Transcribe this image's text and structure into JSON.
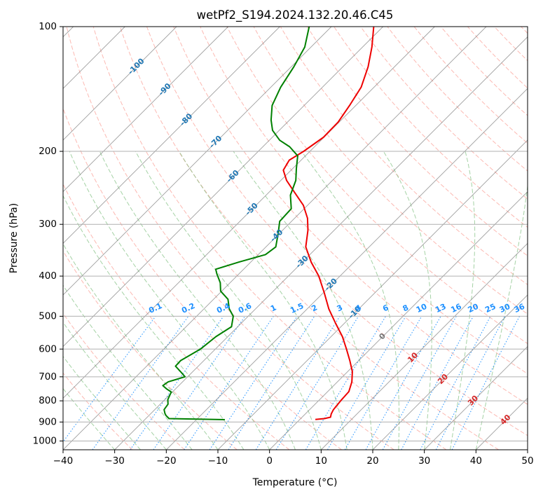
{
  "chart_data": {
    "type": "line",
    "subtype": "skew-t log-p",
    "title": "wetPf2_S194.2024.132.20.46.C45",
    "xlabel": "Temperature (°C)",
    "ylabel": "Pressure (hPa)",
    "xlim": [
      -40,
      50
    ],
    "ylim": [
      1050,
      100
    ],
    "y_scale": "log",
    "x_ticks": [
      "−40",
      "−30",
      "−20",
      "−10",
      "0",
      "10",
      "20",
      "30",
      "40",
      "50"
    ],
    "y_ticks": [
      "100",
      "200",
      "300",
      "400",
      "500",
      "600",
      "700",
      "800",
      "900",
      "1000"
    ],
    "grid": true,
    "colors": {
      "temperature": "#ee0000",
      "dewpoint": "#008000",
      "isotherm": "#808080",
      "dry_adiabat": "#fa8072",
      "moist_adiabat": "#7fbf7f",
      "mixing_ratio": "#1e90ff",
      "isotherm_label_blue": "#1f77b4",
      "isotherm_label_red": "#d62728",
      "isotherm_label_gray": "#777777"
    },
    "series": [
      {
        "key": "temperature",
        "points": [
          {
            "p": 887,
            "t": 3.0
          },
          {
            "p": 883,
            "t": 4.6
          },
          {
            "p": 876,
            "t": 5.5
          },
          {
            "p": 860,
            "t": 5.0
          },
          {
            "p": 840,
            "t": 4.6
          },
          {
            "p": 800,
            "t": 4.3
          },
          {
            "p": 760,
            "t": 4.1
          },
          {
            "p": 720,
            "t": 2.8
          },
          {
            "p": 680,
            "t": 0.9
          },
          {
            "p": 640,
            "t": -1.7
          },
          {
            "p": 600,
            "t": -4.6
          },
          {
            "p": 560,
            "t": -7.8
          },
          {
            "p": 520,
            "t": -11.7
          },
          {
            "p": 480,
            "t": -15.8
          },
          {
            "p": 440,
            "t": -19.7
          },
          {
            "p": 400,
            "t": -24.1
          },
          {
            "p": 370,
            "t": -28.3
          },
          {
            "p": 340,
            "t": -32.3
          },
          {
            "p": 310,
            "t": -35.1
          },
          {
            "p": 290,
            "t": -37.5
          },
          {
            "p": 270,
            "t": -40.8
          },
          {
            "p": 250,
            "t": -45.3
          },
          {
            "p": 235,
            "t": -48.9
          },
          {
            "p": 222,
            "t": -51.5
          },
          {
            "p": 210,
            "t": -52.3
          },
          {
            "p": 200,
            "t": -51.2
          },
          {
            "p": 185,
            "t": -50.1
          },
          {
            "p": 170,
            "t": -50.2
          },
          {
            "p": 155,
            "t": -51.2
          },
          {
            "p": 140,
            "t": -52.5
          },
          {
            "p": 125,
            "t": -55.1
          },
          {
            "p": 112,
            "t": -58.2
          },
          {
            "p": 100,
            "t": -61.8
          }
        ]
      },
      {
        "key": "dewpoint",
        "points": [
          {
            "p": 888,
            "t": -14.5
          },
          {
            "p": 883,
            "t": -25.5
          },
          {
            "p": 868,
            "t": -26.7
          },
          {
            "p": 858,
            "t": -27.3
          },
          {
            "p": 840,
            "t": -28.2
          },
          {
            "p": 815,
            "t": -28.5
          },
          {
            "p": 795,
            "t": -29.4
          },
          {
            "p": 775,
            "t": -29.9
          },
          {
            "p": 762,
            "t": -30.2
          },
          {
            "p": 748,
            "t": -31.8
          },
          {
            "p": 735,
            "t": -33.1
          },
          {
            "p": 720,
            "t": -32.8
          },
          {
            "p": 700,
            "t": -30.5
          },
          {
            "p": 680,
            "t": -32.4
          },
          {
            "p": 660,
            "t": -34.4
          },
          {
            "p": 640,
            "t": -34.5
          },
          {
            "p": 600,
            "t": -32.9
          },
          {
            "p": 560,
            "t": -32.3
          },
          {
            "p": 530,
            "t": -31.2
          },
          {
            "p": 500,
            "t": -32.9
          },
          {
            "p": 480,
            "t": -35.1
          },
          {
            "p": 455,
            "t": -37.2
          },
          {
            "p": 435,
            "t": -40.2
          },
          {
            "p": 415,
            "t": -41.9
          },
          {
            "p": 395,
            "t": -44.3
          },
          {
            "p": 385,
            "t": -45.4
          },
          {
            "p": 370,
            "t": -42.3
          },
          {
            "p": 355,
            "t": -38.6
          },
          {
            "p": 340,
            "t": -38.1
          },
          {
            "p": 315,
            "t": -40.3
          },
          {
            "p": 295,
            "t": -42.3
          },
          {
            "p": 275,
            "t": -42.5
          },
          {
            "p": 255,
            "t": -45.3
          },
          {
            "p": 235,
            "t": -47.1
          },
          {
            "p": 220,
            "t": -49.3
          },
          {
            "p": 205,
            "t": -51.5
          },
          {
            "p": 195,
            "t": -54.8
          },
          {
            "p": 188,
            "t": -58.0
          },
          {
            "p": 178,
            "t": -61.3
          },
          {
            "p": 168,
            "t": -63.6
          },
          {
            "p": 155,
            "t": -66.2
          },
          {
            "p": 140,
            "t": -68.1
          },
          {
            "p": 125,
            "t": -69.5
          },
          {
            "p": 112,
            "t": -71.2
          },
          {
            "p": 100,
            "t": -74.3
          }
        ]
      }
    ],
    "isotherm_labels": [
      {
        "text": "-100",
        "t": -100,
        "p": 125
      },
      {
        "text": "-90",
        "t": -90,
        "p": 142
      },
      {
        "text": "-80",
        "t": -80,
        "p": 168
      },
      {
        "text": "-70",
        "t": -70,
        "p": 190
      },
      {
        "text": "-60",
        "t": -60,
        "p": 230
      },
      {
        "text": "-50",
        "t": -50,
        "p": 276
      },
      {
        "text": "-40",
        "t": -40,
        "p": 320
      },
      {
        "text": "-30",
        "t": -30,
        "p": 370
      },
      {
        "text": "-20",
        "t": -20,
        "p": 420
      },
      {
        "text": "-10",
        "t": -10,
        "p": 490
      },
      {
        "text": "0",
        "t": 0,
        "p": 560
      },
      {
        "text": "10",
        "t": 10,
        "p": 630
      },
      {
        "text": "20",
        "t": 20,
        "p": 710
      },
      {
        "text": "30",
        "t": 30,
        "p": 800
      },
      {
        "text": "40",
        "t": 40,
        "p": 890
      }
    ],
    "mixing_ratio_labels": [
      "0.1",
      "0.2",
      "0.4",
      "0.6",
      "1",
      "1.5",
      "2",
      "3",
      "4",
      "6",
      "8",
      "10",
      "13",
      "16",
      "20",
      "25",
      "30",
      "36"
    ]
  }
}
